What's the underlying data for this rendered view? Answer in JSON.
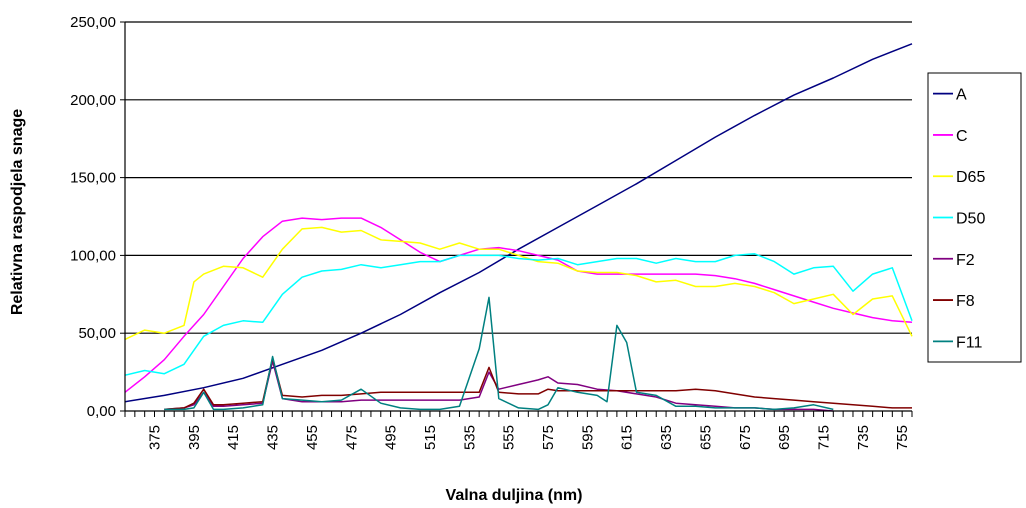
{
  "chart_data": {
    "type": "line",
    "title": "",
    "xlabel": "Valna duljina (nm)",
    "ylabel": "Relativna raspodjela snage",
    "xlim": [
      360,
      760
    ],
    "ylim": [
      0,
      250
    ],
    "y_ticks": [
      "0,00",
      "50,00",
      "100,00",
      "150,00",
      "200,00",
      "250,00"
    ],
    "x_ticks": [
      "375",
      "395",
      "415",
      "435",
      "455",
      "475",
      "495",
      "515",
      "535",
      "555",
      "575",
      "595",
      "615",
      "635",
      "655",
      "675",
      "695",
      "715",
      "735",
      "755"
    ],
    "grid": true,
    "legend": "right",
    "series": [
      {
        "name": "A",
        "color": "#000080",
        "x": [
          360,
          380,
          400,
          420,
          440,
          460,
          480,
          500,
          520,
          540,
          560,
          580,
          600,
          620,
          640,
          660,
          680,
          700,
          720,
          740,
          760
        ],
        "y": [
          6,
          10,
          15,
          21,
          30,
          39,
          50,
          62,
          76,
          89,
          104,
          118,
          132,
          146,
          161,
          176,
          190,
          203,
          214,
          226,
          236
        ]
      },
      {
        "name": "C",
        "color": "#ff00ff",
        "x": [
          360,
          370,
          380,
          390,
          400,
          410,
          420,
          430,
          440,
          450,
          460,
          470,
          480,
          490,
          500,
          510,
          520,
          530,
          540,
          550,
          560,
          570,
          580,
          590,
          600,
          610,
          620,
          630,
          640,
          650,
          660,
          670,
          680,
          690,
          700,
          710,
          720,
          730,
          740,
          750,
          760
        ],
        "y": [
          12,
          22,
          33,
          48,
          62,
          80,
          98,
          112,
          122,
          124,
          123,
          124,
          124,
          118,
          110,
          102,
          96,
          100,
          104,
          105,
          103,
          100,
          97,
          90,
          88,
          88,
          88,
          88,
          88,
          88,
          87,
          85,
          82,
          78,
          74,
          70,
          66,
          63,
          60,
          58,
          57
        ]
      },
      {
        "name": "D65",
        "color": "#ffff00",
        "x": [
          360,
          370,
          380,
          390,
          395,
          400,
          410,
          420,
          430,
          440,
          450,
          460,
          470,
          480,
          490,
          500,
          510,
          520,
          530,
          540,
          550,
          560,
          570,
          580,
          590,
          600,
          610,
          620,
          630,
          640,
          650,
          660,
          670,
          680,
          690,
          700,
          710,
          720,
          730,
          740,
          750,
          760
        ],
        "y": [
          46,
          52,
          50,
          55,
          83,
          88,
          93,
          92,
          86,
          104,
          117,
          118,
          115,
          116,
          110,
          109,
          108,
          104,
          108,
          104,
          104,
          100,
          96,
          95,
          90,
          89,
          89,
          87,
          83,
          84,
          80,
          80,
          82,
          80,
          76,
          69,
          72,
          75,
          62,
          72,
          74,
          48
        ]
      },
      {
        "name": "D50",
        "color": "#00ffff",
        "x": [
          360,
          370,
          380,
          390,
          400,
          410,
          420,
          430,
          440,
          450,
          460,
          470,
          480,
          490,
          500,
          510,
          520,
          530,
          540,
          550,
          560,
          570,
          580,
          590,
          600,
          610,
          620,
          630,
          640,
          650,
          660,
          670,
          680,
          690,
          700,
          710,
          720,
          730,
          740,
          750,
          760
        ],
        "y": [
          23,
          26,
          24,
          30,
          48,
          55,
          58,
          57,
          75,
          86,
          90,
          91,
          94,
          92,
          94,
          96,
          96,
          100,
          100,
          100,
          98,
          97,
          98,
          94,
          96,
          98,
          98,
          95,
          98,
          96,
          96,
          100,
          101,
          96,
          88,
          92,
          93,
          77,
          88,
          92,
          58
        ]
      },
      {
        "name": "F2",
        "color": "#800080",
        "x": [
          380,
          390,
          395,
          400,
          405,
          410,
          420,
          430,
          435,
          440,
          450,
          460,
          470,
          480,
          490,
          500,
          510,
          520,
          530,
          540,
          545,
          550,
          560,
          570,
          575,
          580,
          590,
          600,
          610,
          620,
          630,
          640,
          650,
          660,
          670,
          680,
          690,
          700,
          710,
          720
        ],
        "y": [
          1,
          2,
          4,
          12,
          3,
          3,
          4,
          5,
          32,
          8,
          6,
          6,
          6,
          7,
          7,
          7,
          7,
          7,
          7,
          9,
          25,
          14,
          17,
          20,
          22,
          18,
          17,
          14,
          13,
          11,
          9,
          5,
          4,
          3,
          2,
          2,
          1,
          1,
          1,
          0
        ]
      },
      {
        "name": "F8",
        "color": "#800000",
        "x": [
          380,
          390,
          395,
          400,
          405,
          410,
          420,
          430,
          435,
          440,
          450,
          460,
          470,
          480,
          490,
          500,
          510,
          520,
          530,
          540,
          545,
          550,
          560,
          570,
          575,
          580,
          590,
          600,
          610,
          620,
          630,
          640,
          650,
          660,
          670,
          680,
          690,
          700,
          710,
          720,
          730,
          740,
          750,
          760
        ],
        "y": [
          1,
          2,
          5,
          14,
          4,
          4,
          5,
          6,
          34,
          10,
          9,
          10,
          10,
          11,
          12,
          12,
          12,
          12,
          12,
          12,
          28,
          12,
          11,
          11,
          14,
          13,
          13,
          13,
          13,
          13,
          13,
          13,
          14,
          13,
          11,
          9,
          8,
          7,
          6,
          5,
          4,
          3,
          2,
          2
        ]
      },
      {
        "name": "F11",
        "color": "#008080",
        "x": [
          380,
          390,
          395,
          400,
          405,
          410,
          420,
          430,
          435,
          440,
          450,
          460,
          470,
          480,
          490,
          500,
          510,
          520,
          530,
          540,
          545,
          550,
          560,
          570,
          575,
          580,
          590,
          600,
          605,
          610,
          615,
          620,
          630,
          640,
          650,
          660,
          670,
          680,
          690,
          700,
          710,
          720
        ],
        "y": [
          1,
          1,
          2,
          12,
          1,
          1,
          2,
          4,
          35,
          8,
          7,
          6,
          7,
          14,
          5,
          2,
          1,
          1,
          3,
          40,
          73,
          8,
          2,
          1,
          4,
          15,
          12,
          10,
          6,
          55,
          44,
          12,
          10,
          3,
          3,
          2,
          2,
          2,
          1,
          2,
          4,
          1
        ]
      }
    ]
  }
}
